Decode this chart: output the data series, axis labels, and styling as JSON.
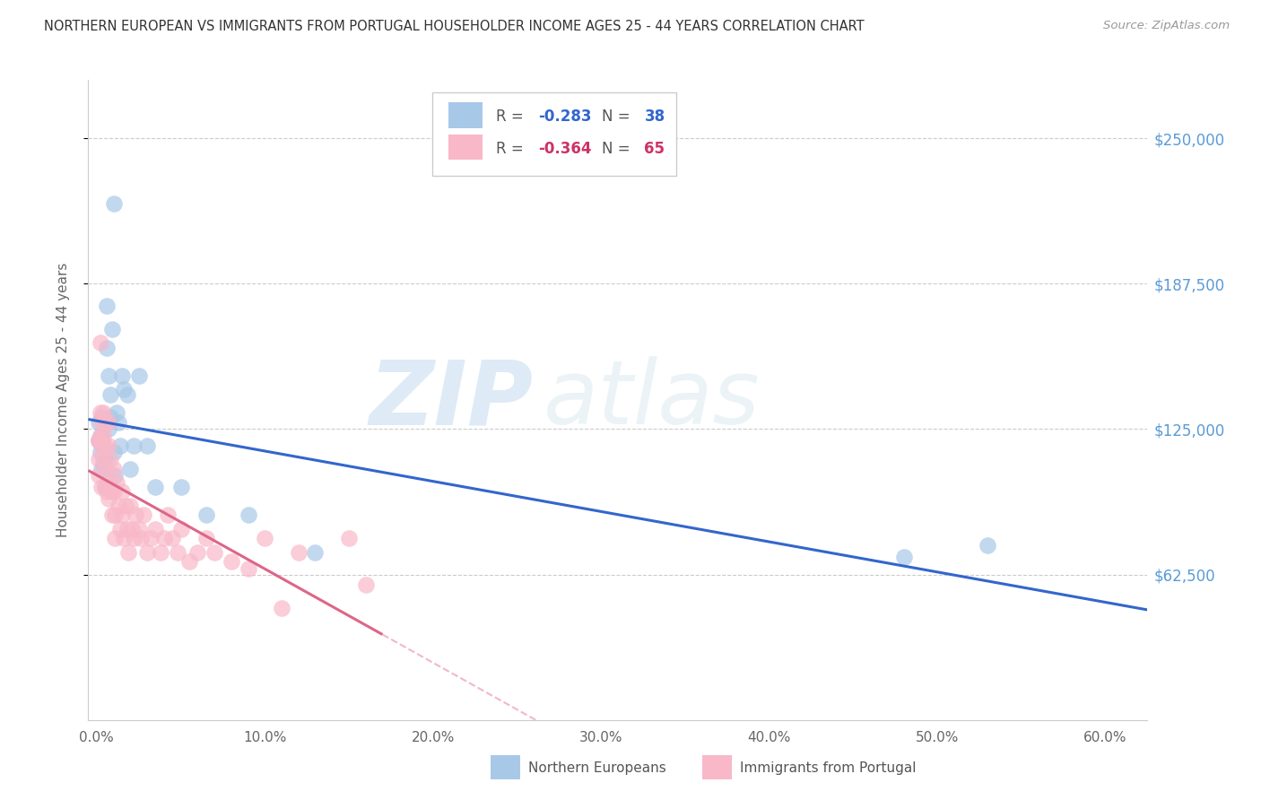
{
  "title": "NORTHERN EUROPEAN VS IMMIGRANTS FROM PORTUGAL HOUSEHOLDER INCOME AGES 25 - 44 YEARS CORRELATION CHART",
  "source": "Source: ZipAtlas.com",
  "ylabel": "Householder Income Ages 25 - 44 years",
  "xlabel_ticks": [
    "0.0%",
    "10.0%",
    "20.0%",
    "30.0%",
    "40.0%",
    "50.0%",
    "60.0%"
  ],
  "xlabel_vals": [
    0.0,
    0.1,
    0.2,
    0.3,
    0.4,
    0.5,
    0.6
  ],
  "ytick_labels": [
    "$62,500",
    "$125,000",
    "$187,500",
    "$250,000"
  ],
  "ytick_vals": [
    62500,
    125000,
    187500,
    250000
  ],
  "ylim": [
    0,
    275000
  ],
  "xlim": [
    -0.005,
    0.625
  ],
  "blue_R": -0.283,
  "blue_N": 38,
  "pink_R": -0.364,
  "pink_N": 65,
  "blue_color": "#a8c8e8",
  "pink_color": "#f8b8c8",
  "blue_line_color": "#3366cc",
  "pink_line_color": "#dd6688",
  "pink_line_dashed_color": "#f0b8c8",
  "watermark_zip": "ZIP",
  "watermark_atlas": "atlas",
  "legend_blue_label": "Northern Europeans",
  "legend_pink_label": "Immigrants from Portugal",
  "blue_x": [
    0.001,
    0.001,
    0.002,
    0.002,
    0.003,
    0.003,
    0.003,
    0.004,
    0.004,
    0.005,
    0.005,
    0.006,
    0.006,
    0.007,
    0.007,
    0.008,
    0.008,
    0.009,
    0.01,
    0.011,
    0.012,
    0.013,
    0.014,
    0.015,
    0.016,
    0.018,
    0.02,
    0.022,
    0.025,
    0.03,
    0.035,
    0.05,
    0.065,
    0.09,
    0.13,
    0.48,
    0.53,
    0.01
  ],
  "blue_y": [
    120000,
    128000,
    122000,
    115000,
    130000,
    120000,
    108000,
    118000,
    110000,
    100000,
    112000,
    178000,
    160000,
    148000,
    125000,
    140000,
    130000,
    168000,
    222000,
    105000,
    132000,
    128000,
    118000,
    148000,
    142000,
    140000,
    108000,
    118000,
    148000,
    118000,
    100000,
    100000,
    88000,
    88000,
    72000,
    70000,
    75000,
    115000
  ],
  "pink_x": [
    0.001,
    0.001,
    0.001,
    0.002,
    0.002,
    0.002,
    0.003,
    0.003,
    0.003,
    0.004,
    0.004,
    0.004,
    0.005,
    0.005,
    0.005,
    0.006,
    0.006,
    0.007,
    0.007,
    0.007,
    0.008,
    0.008,
    0.009,
    0.009,
    0.01,
    0.01,
    0.011,
    0.011,
    0.012,
    0.013,
    0.014,
    0.015,
    0.015,
    0.016,
    0.017,
    0.018,
    0.019,
    0.02,
    0.021,
    0.022,
    0.023,
    0.025,
    0.026,
    0.028,
    0.03,
    0.032,
    0.035,
    0.038,
    0.04,
    0.042,
    0.045,
    0.048,
    0.05,
    0.055,
    0.06,
    0.065,
    0.07,
    0.08,
    0.09,
    0.1,
    0.11,
    0.12,
    0.15,
    0.16,
    0.001
  ],
  "pink_y": [
    120000,
    112000,
    105000,
    162000,
    132000,
    122000,
    128000,
    118000,
    100000,
    132000,
    122000,
    112000,
    128000,
    118000,
    100000,
    108000,
    98000,
    128000,
    118000,
    95000,
    112000,
    102000,
    98000,
    88000,
    108000,
    98000,
    88000,
    78000,
    102000,
    92000,
    82000,
    98000,
    88000,
    78000,
    92000,
    82000,
    72000,
    92000,
    82000,
    78000,
    88000,
    82000,
    78000,
    88000,
    72000,
    78000,
    82000,
    72000,
    78000,
    88000,
    78000,
    72000,
    82000,
    68000,
    72000,
    78000,
    72000,
    68000,
    65000,
    78000,
    48000,
    72000,
    78000,
    58000,
    120000
  ]
}
